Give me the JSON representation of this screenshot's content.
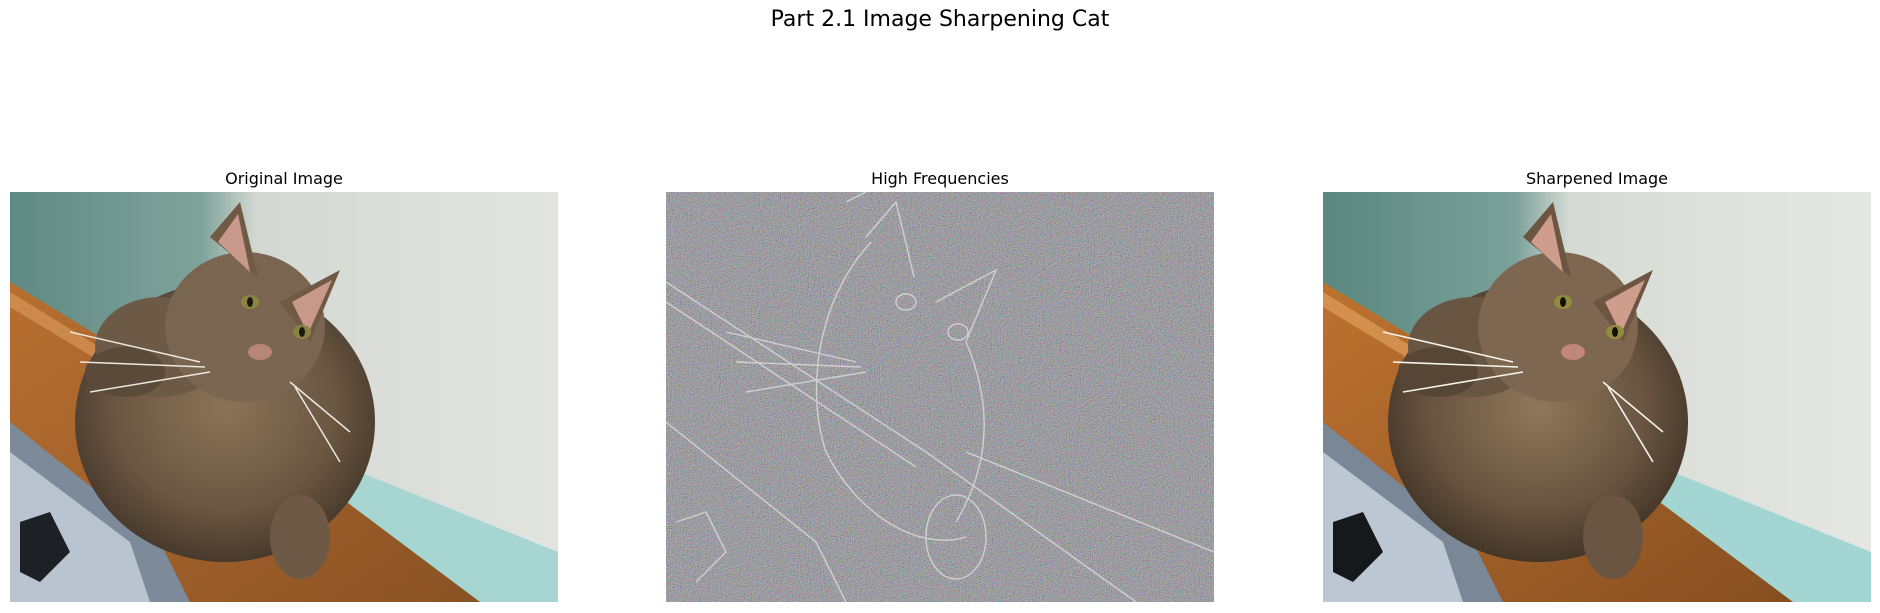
{
  "figure": {
    "title": "Part 2.1 Image Sharpening Cat"
  },
  "panels": [
    {
      "title": "Original Image",
      "image": "cat-photo"
    },
    {
      "title": "High Frequencies",
      "image": "cat-high-frequency-edges"
    },
    {
      "title": "Sharpened Image",
      "image": "cat-photo-sharpened"
    }
  ],
  "colors": {
    "wall_teal": "#5f8a83",
    "wall_white": "#dcdfdb",
    "baseboard_aqua": "#a6d5d2",
    "wood": "#a2652d",
    "wood_edge": "#d5955a",
    "fur": "#6e5b46",
    "hf_gray": "#858585"
  }
}
